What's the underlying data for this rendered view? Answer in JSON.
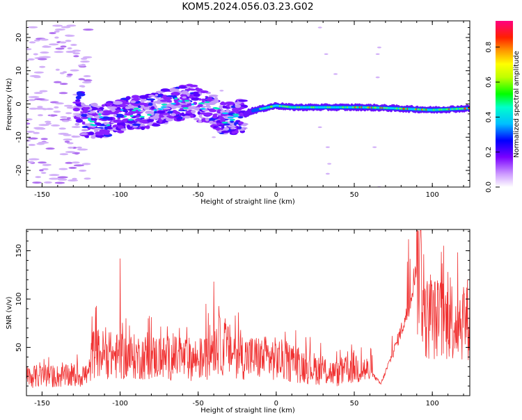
{
  "title": "KOM5.2024.056.03.23.G02",
  "colorbar": {
    "label": "Normalized spectral amplitude",
    "ticks": [
      "0.0",
      "0.2",
      "0.4",
      "0.6",
      "0.8"
    ]
  },
  "chart_data": [
    {
      "type": "heatmap",
      "title": "KOM5.2024.056.03.23.G02",
      "xlabel": "Height of straight line (km)",
      "ylabel": "Frequency (Hz)",
      "xlim": [
        -160,
        124
      ],
      "ylim": [
        -25,
        25
      ],
      "xticks": [
        -150,
        -100,
        -50,
        0,
        50,
        100
      ],
      "yticks": [
        -20,
        -10,
        0,
        10,
        20
      ],
      "colorbar_range": [
        0,
        0.95
      ],
      "ridge": {
        "description_points_x": [
          -125,
          -110,
          -95,
          -80,
          -65,
          -55,
          -45,
          -35,
          -25,
          -15,
          -5,
          0,
          10,
          25,
          40,
          55,
          70,
          85,
          100,
          115,
          124
        ],
        "frequency": [
          -5,
          -5,
          -3,
          -2,
          0,
          1,
          -1,
          -4,
          -4,
          -2,
          -1,
          -0.5,
          -1,
          -1,
          -1,
          -1,
          -1.2,
          -1.5,
          -1.8,
          -1.5,
          -1.3
        ]
      }
    },
    {
      "type": "line",
      "xlabel": "Height of straight line (km)",
      "ylabel": "SNR (v/v)",
      "xlim": [
        -160,
        124
      ],
      "ylim": [
        0,
        172
      ],
      "xticks": [
        -150,
        -100,
        -50,
        0,
        50,
        100
      ],
      "yticks": [
        50,
        100,
        150
      ],
      "color": "#f03030",
      "envelope": {
        "x": [
          -160,
          -130,
          -120,
          -118,
          -100,
          -80,
          -60,
          -45,
          -40,
          -35,
          -20,
          0,
          20,
          40,
          50,
          60,
          67,
          75,
          85,
          90,
          92,
          95,
          100,
          110,
          124
        ],
        "y": [
          20,
          20,
          22,
          45,
          40,
          40,
          38,
          38,
          55,
          50,
          40,
          38,
          30,
          22,
          30,
          25,
          12,
          45,
          90,
          140,
          150,
          80,
          80,
          78,
          80
        ]
      }
    }
  ]
}
